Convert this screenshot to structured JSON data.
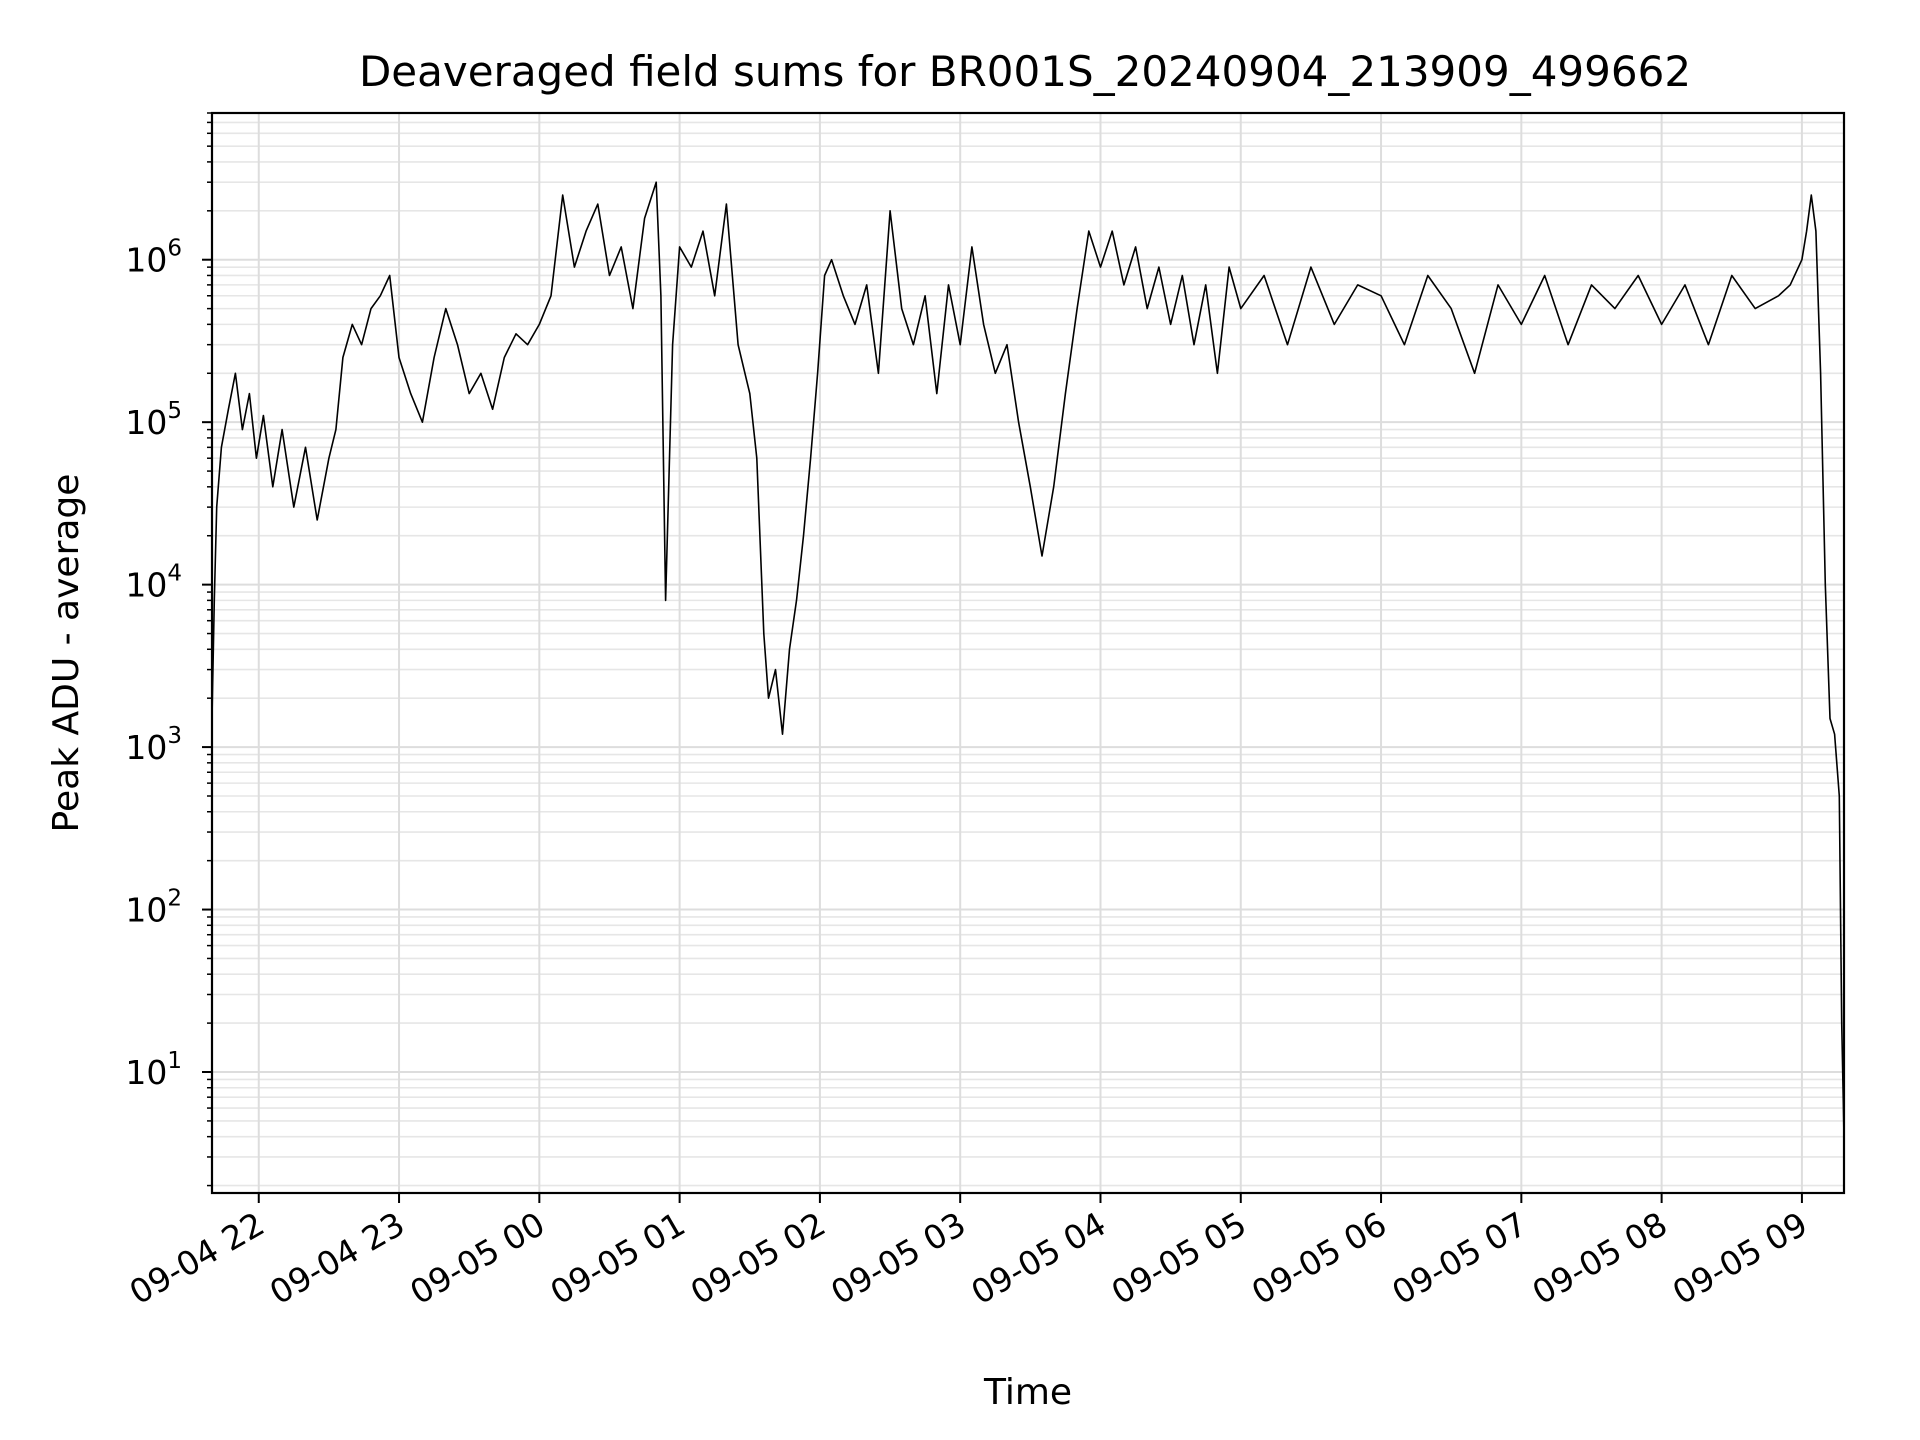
{
  "chart_data": {
    "type": "line",
    "title": "Deaveraged field sums for BR001S_20240904_213909_499662",
    "xlabel": "Time",
    "ylabel": "Peak ADU - average",
    "yscale": "log",
    "grid": true,
    "xlim": [
      "2024-09-04 21:40",
      "2024-09-05 09:18"
    ],
    "ylim": [
      1.8,
      8000000
    ],
    "x_ticks": [
      {
        "time": "2024-09-04 22:00",
        "label": "09-04 22"
      },
      {
        "time": "2024-09-04 23:00",
        "label": "09-04 23"
      },
      {
        "time": "2024-09-05 00:00",
        "label": "09-05 00"
      },
      {
        "time": "2024-09-05 01:00",
        "label": "09-05 01"
      },
      {
        "time": "2024-09-05 02:00",
        "label": "09-05 02"
      },
      {
        "time": "2024-09-05 03:00",
        "label": "09-05 03"
      },
      {
        "time": "2024-09-05 04:00",
        "label": "09-05 04"
      },
      {
        "time": "2024-09-05 05:00",
        "label": "09-05 05"
      },
      {
        "time": "2024-09-05 06:00",
        "label": "09-05 06"
      },
      {
        "time": "2024-09-05 07:00",
        "label": "09-05 07"
      },
      {
        "time": "2024-09-05 08:00",
        "label": "09-05 08"
      },
      {
        "time": "2024-09-05 09:00",
        "label": "09-05 09"
      }
    ],
    "y_ticks": [
      {
        "value": 10,
        "base": "10",
        "exp": "1"
      },
      {
        "value": 100,
        "base": "10",
        "exp": "2"
      },
      {
        "value": 1000,
        "base": "10",
        "exp": "3"
      },
      {
        "value": 10000,
        "base": "10",
        "exp": "4"
      },
      {
        "value": 100000,
        "base": "10",
        "exp": "5"
      },
      {
        "value": 1000000,
        "base": "10",
        "exp": "6"
      }
    ],
    "line_color": "#000000",
    "series": [
      {
        "points": [
          [
            "2024-09-04 21:40",
            1500
          ],
          [
            "2024-09-04 21:41",
            8000
          ],
          [
            "2024-09-04 21:42",
            30000
          ],
          [
            "2024-09-04 21:44",
            70000
          ],
          [
            "2024-09-04 21:47",
            120000
          ],
          [
            "2024-09-04 21:50",
            200000
          ],
          [
            "2024-09-04 21:53",
            90000
          ],
          [
            "2024-09-04 21:56",
            150000
          ],
          [
            "2024-09-04 21:59",
            60000
          ],
          [
            "2024-09-04 22:02",
            110000
          ],
          [
            "2024-09-04 22:06",
            40000
          ],
          [
            "2024-09-04 22:10",
            90000
          ],
          [
            "2024-09-04 22:15",
            30000
          ],
          [
            "2024-09-04 22:20",
            70000
          ],
          [
            "2024-09-04 22:25",
            25000
          ],
          [
            "2024-09-04 22:30",
            60000
          ],
          [
            "2024-09-04 22:33",
            90000
          ],
          [
            "2024-09-04 22:36",
            250000
          ],
          [
            "2024-09-04 22:40",
            400000
          ],
          [
            "2024-09-04 22:44",
            300000
          ],
          [
            "2024-09-04 22:48",
            500000
          ],
          [
            "2024-09-04 22:52",
            600000
          ],
          [
            "2024-09-04 22:56",
            800000
          ],
          [
            "2024-09-04 23:00",
            250000
          ],
          [
            "2024-09-04 23:05",
            150000
          ],
          [
            "2024-09-04 23:10",
            100000
          ],
          [
            "2024-09-04 23:15",
            250000
          ],
          [
            "2024-09-04 23:20",
            500000
          ],
          [
            "2024-09-04 23:25",
            300000
          ],
          [
            "2024-09-04 23:30",
            150000
          ],
          [
            "2024-09-04 23:35",
            200000
          ],
          [
            "2024-09-04 23:40",
            120000
          ],
          [
            "2024-09-04 23:45",
            250000
          ],
          [
            "2024-09-04 23:50",
            350000
          ],
          [
            "2024-09-04 23:55",
            300000
          ],
          [
            "2024-09-05 00:00",
            400000
          ],
          [
            "2024-09-05 00:05",
            600000
          ],
          [
            "2024-09-05 00:10",
            2500000
          ],
          [
            "2024-09-05 00:15",
            900000
          ],
          [
            "2024-09-05 00:20",
            1500000
          ],
          [
            "2024-09-05 00:25",
            2200000
          ],
          [
            "2024-09-05 00:30",
            800000
          ],
          [
            "2024-09-05 00:35",
            1200000
          ],
          [
            "2024-09-05 00:40",
            500000
          ],
          [
            "2024-09-05 00:45",
            1800000
          ],
          [
            "2024-09-05 00:50",
            3000000
          ],
          [
            "2024-09-05 00:52",
            600000
          ],
          [
            "2024-09-05 00:54",
            8000
          ],
          [
            "2024-09-05 00:57",
            300000
          ],
          [
            "2024-09-05 01:00",
            1200000
          ],
          [
            "2024-09-05 01:05",
            900000
          ],
          [
            "2024-09-05 01:10",
            1500000
          ],
          [
            "2024-09-05 01:15",
            600000
          ],
          [
            "2024-09-05 01:20",
            2200000
          ],
          [
            "2024-09-05 01:25",
            300000
          ],
          [
            "2024-09-05 01:30",
            150000
          ],
          [
            "2024-09-05 01:33",
            60000
          ],
          [
            "2024-09-05 01:36",
            5000
          ],
          [
            "2024-09-05 01:38",
            2000
          ],
          [
            "2024-09-05 01:41",
            3000
          ],
          [
            "2024-09-05 01:44",
            1200
          ],
          [
            "2024-09-05 01:47",
            4000
          ],
          [
            "2024-09-05 01:50",
            8000
          ],
          [
            "2024-09-05 01:53",
            20000
          ],
          [
            "2024-09-05 01:56",
            60000
          ],
          [
            "2024-09-05 01:59",
            200000
          ],
          [
            "2024-09-05 02:02",
            800000
          ],
          [
            "2024-09-05 02:05",
            1000000
          ],
          [
            "2024-09-05 02:10",
            600000
          ],
          [
            "2024-09-05 02:15",
            400000
          ],
          [
            "2024-09-05 02:20",
            700000
          ],
          [
            "2024-09-05 02:25",
            200000
          ],
          [
            "2024-09-05 02:30",
            2000000
          ],
          [
            "2024-09-05 02:35",
            500000
          ],
          [
            "2024-09-05 02:40",
            300000
          ],
          [
            "2024-09-05 02:45",
            600000
          ],
          [
            "2024-09-05 02:50",
            150000
          ],
          [
            "2024-09-05 02:55",
            700000
          ],
          [
            "2024-09-05 03:00",
            300000
          ],
          [
            "2024-09-05 03:05",
            1200000
          ],
          [
            "2024-09-05 03:10",
            400000
          ],
          [
            "2024-09-05 03:15",
            200000
          ],
          [
            "2024-09-05 03:20",
            300000
          ],
          [
            "2024-09-05 03:25",
            100000
          ],
          [
            "2024-09-05 03:30",
            40000
          ],
          [
            "2024-09-05 03:35",
            15000
          ],
          [
            "2024-09-05 03:40",
            40000
          ],
          [
            "2024-09-05 03:45",
            150000
          ],
          [
            "2024-09-05 03:50",
            500000
          ],
          [
            "2024-09-05 03:55",
            1500000
          ],
          [
            "2024-09-05 04:00",
            900000
          ],
          [
            "2024-09-05 04:05",
            1500000
          ],
          [
            "2024-09-05 04:10",
            700000
          ],
          [
            "2024-09-05 04:15",
            1200000
          ],
          [
            "2024-09-05 04:20",
            500000
          ],
          [
            "2024-09-05 04:25",
            900000
          ],
          [
            "2024-09-05 04:30",
            400000
          ],
          [
            "2024-09-05 04:35",
            800000
          ],
          [
            "2024-09-05 04:40",
            300000
          ],
          [
            "2024-09-05 04:45",
            700000
          ],
          [
            "2024-09-05 04:50",
            200000
          ],
          [
            "2024-09-05 04:55",
            900000
          ],
          [
            "2024-09-05 05:00",
            500000
          ],
          [
            "2024-09-05 05:10",
            800000
          ],
          [
            "2024-09-05 05:20",
            300000
          ],
          [
            "2024-09-05 05:30",
            900000
          ],
          [
            "2024-09-05 05:40",
            400000
          ],
          [
            "2024-09-05 05:50",
            700000
          ],
          [
            "2024-09-05 06:00",
            600000
          ],
          [
            "2024-09-05 06:10",
            300000
          ],
          [
            "2024-09-05 06:20",
            800000
          ],
          [
            "2024-09-05 06:30",
            500000
          ],
          [
            "2024-09-05 06:40",
            200000
          ],
          [
            "2024-09-05 06:50",
            700000
          ],
          [
            "2024-09-05 07:00",
            400000
          ],
          [
            "2024-09-05 07:10",
            800000
          ],
          [
            "2024-09-05 07:20",
            300000
          ],
          [
            "2024-09-05 07:30",
            700000
          ],
          [
            "2024-09-05 07:40",
            500000
          ],
          [
            "2024-09-05 07:50",
            800000
          ],
          [
            "2024-09-05 08:00",
            400000
          ],
          [
            "2024-09-05 08:10",
            700000
          ],
          [
            "2024-09-05 08:20",
            300000
          ],
          [
            "2024-09-05 08:30",
            800000
          ],
          [
            "2024-09-05 08:40",
            500000
          ],
          [
            "2024-09-05 08:50",
            600000
          ],
          [
            "2024-09-05 08:55",
            700000
          ],
          [
            "2024-09-05 09:00",
            1000000
          ],
          [
            "2024-09-05 09:02",
            1500000
          ],
          [
            "2024-09-05 09:04",
            2500000
          ],
          [
            "2024-09-05 09:06",
            1500000
          ],
          [
            "2024-09-05 09:08",
            200000
          ],
          [
            "2024-09-05 09:10",
            10000
          ],
          [
            "2024-09-05 09:12",
            1500
          ],
          [
            "2024-09-05 09:14",
            1200
          ],
          [
            "2024-09-05 09:16",
            500
          ],
          [
            "2024-09-05 09:17",
            20
          ],
          [
            "2024-09-05 09:18",
            4
          ]
        ]
      }
    ]
  }
}
